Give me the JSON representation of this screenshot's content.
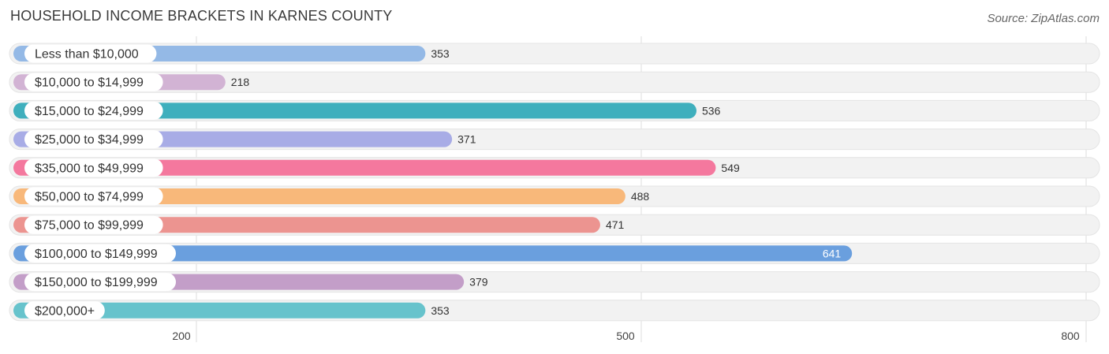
{
  "header": {
    "title": "HOUSEHOLD INCOME BRACKETS IN KARNES COUNTY",
    "source": "Source: ZipAtlas.com"
  },
  "chart_data": {
    "type": "bar",
    "orientation": "horizontal",
    "title": "HOUSEHOLD INCOME BRACKETS IN KARNES COUNTY",
    "xlabel": "",
    "ylabel": "",
    "xlim": [
      73,
      834
    ],
    "grid": true,
    "categories": [
      "Less than $10,000",
      "$10,000 to $14,999",
      "$15,000 to $24,999",
      "$25,000 to $34,999",
      "$35,000 to $49,999",
      "$50,000 to $74,999",
      "$75,000 to $99,999",
      "$100,000 to $149,999",
      "$150,000 to $199,999",
      "$200,000+"
    ],
    "values": [
      353,
      218,
      536,
      371,
      549,
      488,
      471,
      641,
      379,
      353
    ],
    "value_labels": [
      "353",
      "218",
      "536",
      "371",
      "549",
      "488",
      "471",
      "641",
      "379",
      "353"
    ],
    "colors": [
      "#94b9e6",
      "#d2b3d4",
      "#3fafbd",
      "#a8ace6",
      "#f4789e",
      "#f8b87a",
      "#ec9490",
      "#6a9fde",
      "#c39ec8",
      "#67c3cc"
    ],
    "ticks": [
      200,
      500,
      800
    ],
    "tick_labels": [
      "200",
      "500",
      "800"
    ]
  }
}
